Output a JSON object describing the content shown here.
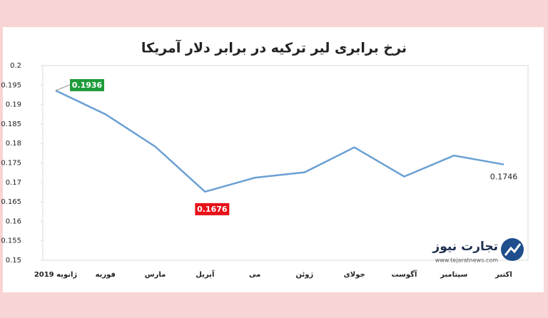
{
  "chart_data": {
    "type": "line",
    "title": "نرخ برابری لیر ترکیه در برابر دلار آمریکا",
    "categories": [
      "ژانویه 2019",
      "فوریه",
      "مارس",
      "آپریل",
      "می",
      "ژوئن",
      "جولای",
      "آگوست",
      "سپتامبر",
      "اکتبر"
    ],
    "series": [
      {
        "color": "#6a9fd4",
        "values": [
          0.1936,
          0.1875,
          0.1792,
          0.1676,
          0.1712,
          0.1726,
          0.179,
          0.1715,
          0.1769,
          0.1746
        ],
        "value_labels": [
          "0.1936",
          null,
          null,
          "0.1676",
          null,
          null,
          null,
          null,
          null,
          "0.1746"
        ]
      }
    ],
    "ylim": [
      0.15,
      0.2
    ],
    "yticks": [
      0.15,
      0.155,
      0.16,
      0.165,
      0.17,
      0.175,
      0.18,
      0.185,
      0.19,
      0.195,
      0.2
    ],
    "watermark": {
      "name": "تجارت نیوز",
      "url": "www.tejaratnews.com"
    }
  }
}
